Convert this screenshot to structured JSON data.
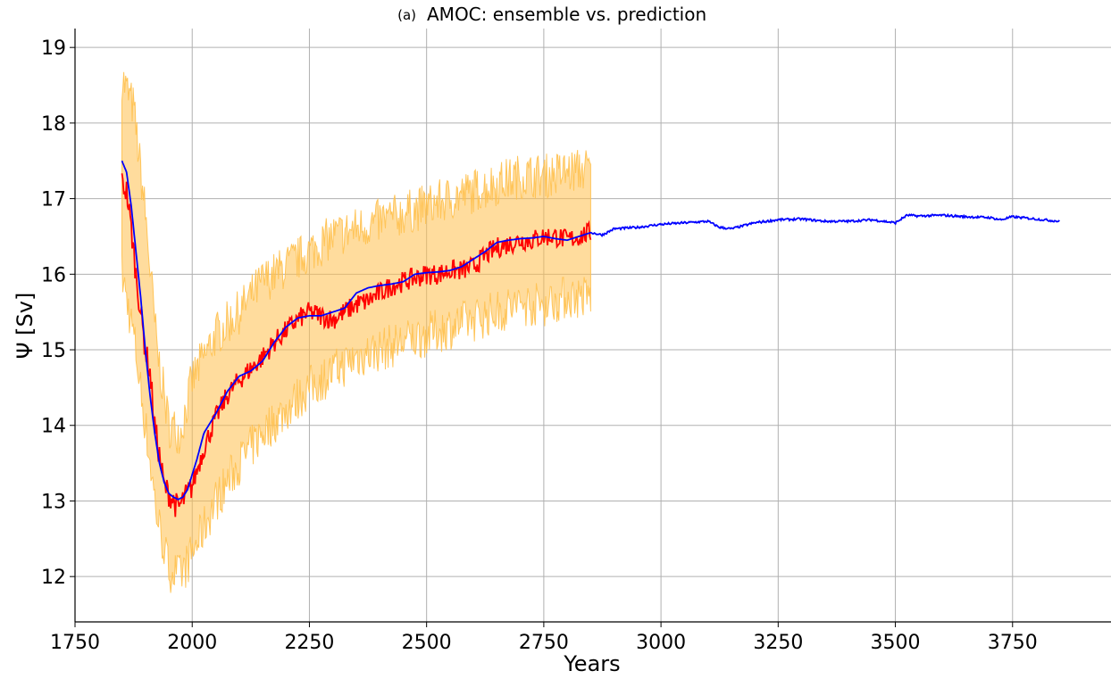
{
  "chart_data": {
    "type": "line",
    "title_tag": "(a)",
    "title": "AMOC: ensemble vs. prediction",
    "xlabel": "Years",
    "ylabel": "Ψ [Sv]",
    "xlim": [
      1750,
      3960
    ],
    "ylim": [
      11.4,
      19.25
    ],
    "xticks": [
      1750,
      2000,
      2250,
      2500,
      2750,
      3000,
      3250,
      3500,
      3750
    ],
    "yticks": [
      12,
      13,
      14,
      15,
      16,
      17,
      18,
      19
    ],
    "grid": true,
    "colors": {
      "ensemble_band": "#ffc04d",
      "ensemble_members": "#ffc04d",
      "ensemble_mean": "#ff0000",
      "prediction": "#0000ff",
      "grid": "#b0b0b0"
    },
    "series": [
      {
        "role": "ensemble_mean",
        "x": [
          1850,
          1860,
          1870,
          1880,
          1890,
          1900,
          1910,
          1920,
          1930,
          1940,
          1950,
          1960,
          1970,
          1980,
          1990,
          2000,
          2010,
          2025,
          2050,
          2075,
          2100,
          2125,
          2150,
          2175,
          2200,
          2225,
          2250,
          2275,
          2300,
          2325,
          2350,
          2375,
          2400,
          2425,
          2450,
          2475,
          2500,
          2525,
          2550,
          2575,
          2600,
          2625,
          2650,
          2675,
          2700,
          2725,
          2750,
          2775,
          2800,
          2825,
          2850
        ],
        "y": [
          17.2,
          17.1,
          16.6,
          16.0,
          15.5,
          15.0,
          14.7,
          14.0,
          13.6,
          13.2,
          13.1,
          13.0,
          12.9,
          13.0,
          13.1,
          13.2,
          13.4,
          13.7,
          14.1,
          14.4,
          14.6,
          14.75,
          14.9,
          15.1,
          15.25,
          15.4,
          15.5,
          15.45,
          15.4,
          15.5,
          15.6,
          15.65,
          15.75,
          15.85,
          15.9,
          15.95,
          16.0,
          16.0,
          16.05,
          16.05,
          16.1,
          16.25,
          16.35,
          16.4,
          16.45,
          16.45,
          16.5,
          16.5,
          16.45,
          16.5,
          16.55
        ]
      },
      {
        "role": "prediction",
        "x": [
          1850,
          1860,
          1870,
          1880,
          1890,
          1900,
          1910,
          1920,
          1930,
          1940,
          1950,
          1960,
          1970,
          1980,
          1990,
          2000,
          2010,
          2025,
          2050,
          2075,
          2100,
          2125,
          2150,
          2175,
          2200,
          2225,
          2250,
          2275,
          2300,
          2325,
          2350,
          2375,
          2400,
          2425,
          2450,
          2475,
          2500,
          2525,
          2550,
          2575,
          2600,
          2625,
          2650,
          2675,
          2700,
          2725,
          2750,
          2775,
          2800,
          2825,
          2850,
          2875,
          2900,
          2950,
          3000,
          3050,
          3100,
          3125,
          3150,
          3200,
          3250,
          3300,
          3350,
          3400,
          3450,
          3500,
          3525,
          3550,
          3600,
          3650,
          3700,
          3725,
          3750,
          3800,
          3850
        ],
        "y": [
          17.5,
          17.35,
          16.9,
          16.3,
          15.7,
          15.0,
          14.4,
          13.9,
          13.5,
          13.25,
          13.1,
          13.05,
          13.02,
          13.05,
          13.15,
          13.35,
          13.55,
          13.9,
          14.15,
          14.45,
          14.65,
          14.72,
          14.85,
          15.1,
          15.3,
          15.42,
          15.45,
          15.45,
          15.5,
          15.55,
          15.75,
          15.82,
          15.85,
          15.87,
          15.9,
          16.0,
          16.02,
          16.03,
          16.05,
          16.1,
          16.2,
          16.3,
          16.42,
          16.45,
          16.47,
          16.48,
          16.5,
          16.47,
          16.45,
          16.5,
          16.55,
          16.52,
          16.6,
          16.62,
          16.66,
          16.68,
          16.7,
          16.62,
          16.6,
          16.68,
          16.72,
          16.73,
          16.7,
          16.7,
          16.72,
          16.68,
          16.78,
          16.77,
          16.78,
          16.76,
          16.75,
          16.72,
          16.76,
          16.73,
          16.7
        ]
      },
      {
        "role": "ensemble_envelope",
        "x": [
          1850,
          1875,
          1900,
          1925,
          1950,
          1975,
          2000,
          2050,
          2100,
          2150,
          2200,
          2250,
          2300,
          2350,
          2400,
          2450,
          2500,
          2550,
          2600,
          2650,
          2700,
          2750,
          2800,
          2850
        ],
        "upper": [
          18.6,
          18.2,
          16.8,
          15.0,
          14.0,
          13.9,
          14.6,
          15.2,
          15.5,
          15.9,
          16.1,
          16.3,
          16.5,
          16.6,
          16.7,
          16.8,
          16.9,
          17.0,
          17.1,
          17.2,
          17.3,
          17.3,
          17.35,
          17.4
        ],
        "lower": [
          16.0,
          15.2,
          14.0,
          12.8,
          12.1,
          12.0,
          12.3,
          13.0,
          13.5,
          13.9,
          14.2,
          14.5,
          14.7,
          14.9,
          15.0,
          15.1,
          15.2,
          15.3,
          15.4,
          15.5,
          15.6,
          15.6,
          15.7,
          15.7
        ]
      }
    ]
  }
}
